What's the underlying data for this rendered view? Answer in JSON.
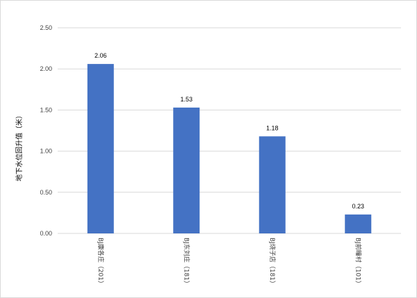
{
  "chart_data": {
    "type": "bar",
    "title": "",
    "xlabel": "",
    "ylabel": "地下水位回升值（米）",
    "categories": [
      "BJ康各庄（201）",
      "BJ东刘庄（181）",
      "BJ烧子店（181）",
      "BJ前疃村（101）"
    ],
    "values": [
      2.06,
      1.53,
      1.18,
      0.23
    ],
    "value_labels": [
      "2.06",
      "1.53",
      "1.18",
      "0.23"
    ],
    "ylim": [
      0,
      2.5
    ],
    "yticks": [
      0,
      0.5,
      1.0,
      1.5,
      2.0,
      2.5
    ],
    "ytick_labels": [
      "0.00",
      "0.50",
      "1.00",
      "1.50",
      "2.00",
      "2.50"
    ],
    "grid": true,
    "bar_color": "#4472c4",
    "grid_color": "#d9d9d9"
  }
}
